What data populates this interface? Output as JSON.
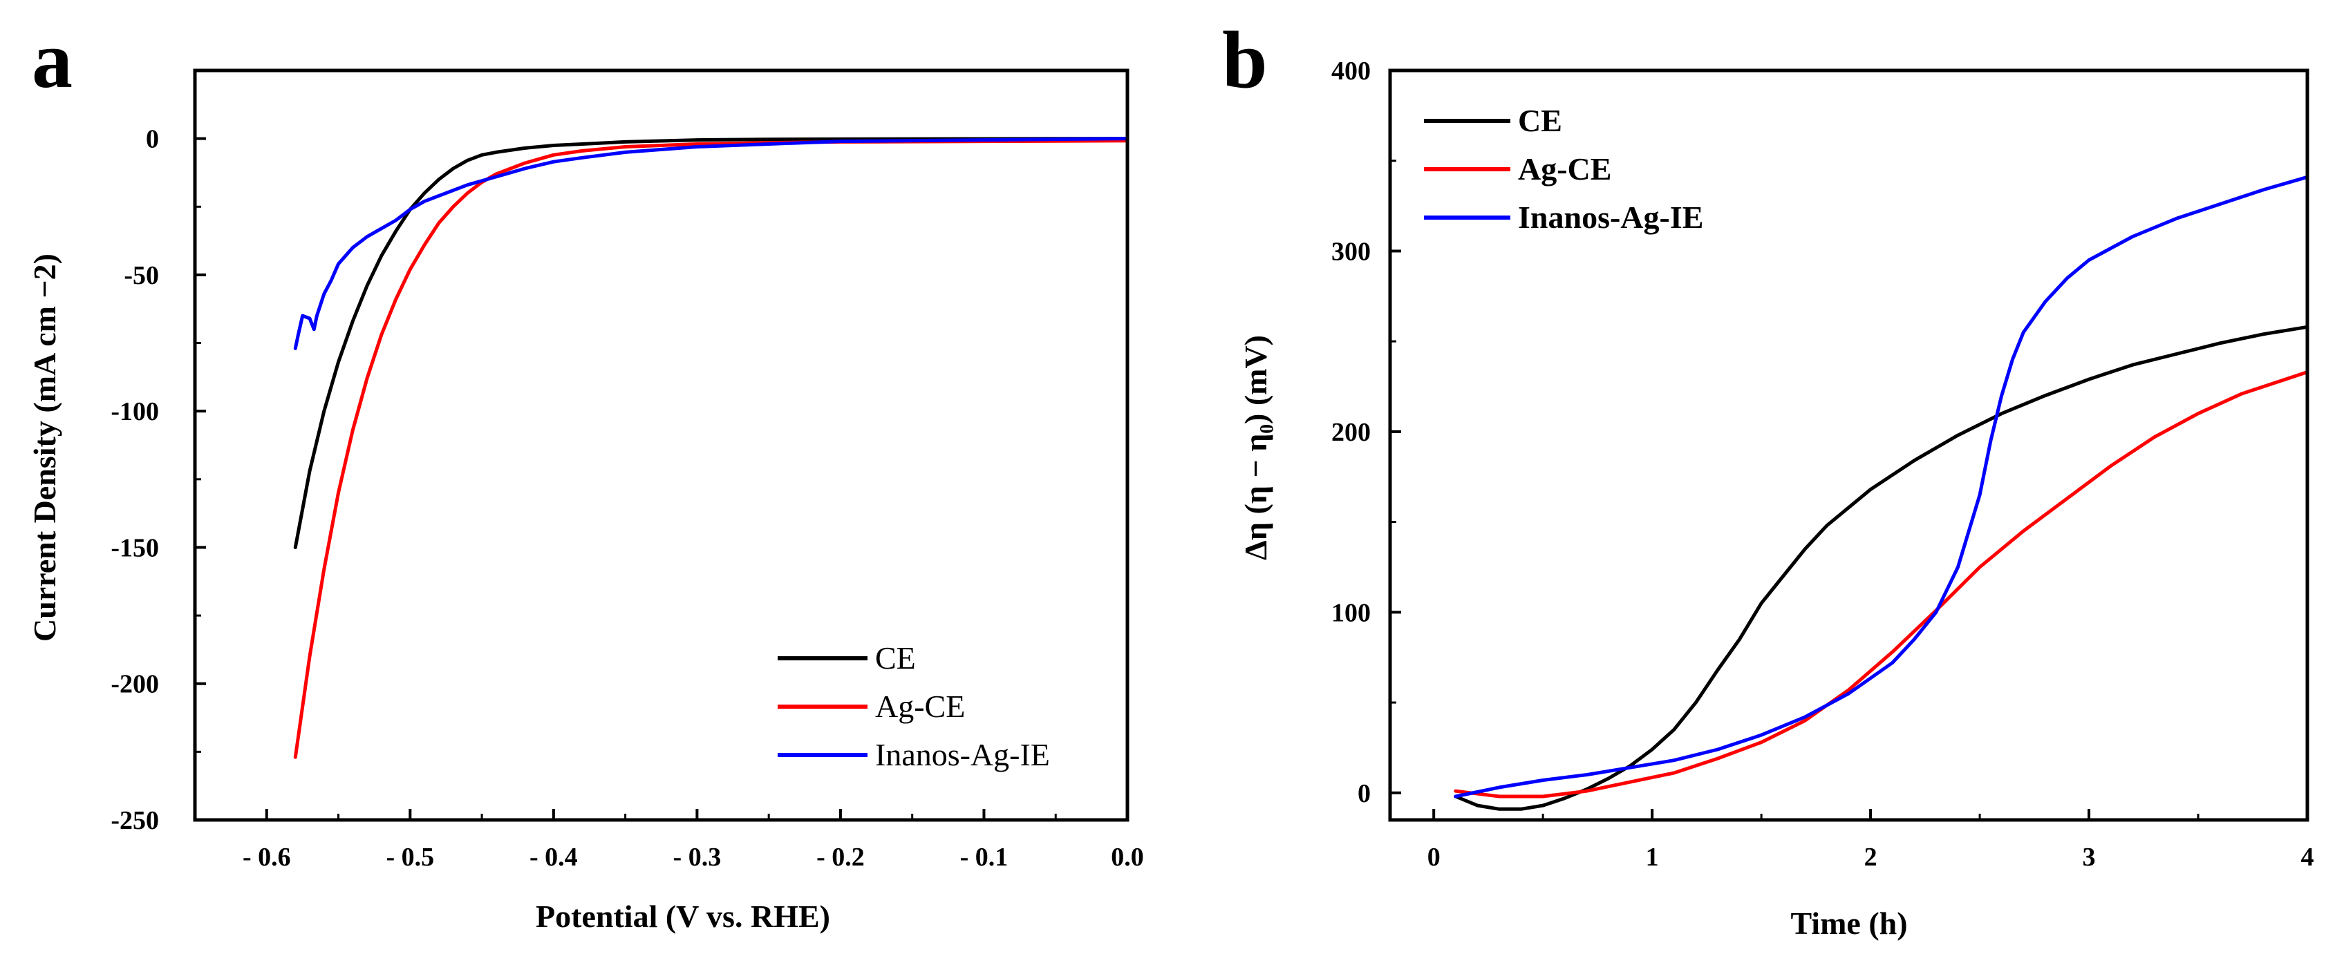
{
  "chart_data": [
    {
      "panel_label": "a",
      "type": "line",
      "title": "",
      "xlabel": "Potential (V vs. RHE)",
      "ylabel": "Current Density (mA cm −2)",
      "xlim": [
        -0.65,
        0.0
      ],
      "ylim": [
        -250,
        25
      ],
      "xticks": [
        -0.6,
        -0.5,
        -0.4,
        -0.3,
        -0.2,
        -0.1,
        0.0
      ],
      "xtick_labels": [
        "- 0.6",
        "- 0.5",
        "- 0.4",
        "- 0.3",
        "- 0.2",
        "- 0.1",
        "0.0"
      ],
      "yticks": [
        0,
        -50,
        -100,
        -150,
        -200,
        -250
      ],
      "ytick_labels": [
        "0",
        "-50",
        "-100",
        "-150",
        "-200",
        "-250"
      ],
      "grid": false,
      "legend_position": "bottom-right",
      "series": [
        {
          "name": "CE",
          "color": "#000000",
          "x": [
            -0.58,
            -0.57,
            -0.56,
            -0.55,
            -0.54,
            -0.53,
            -0.52,
            -0.51,
            -0.5,
            -0.49,
            -0.48,
            -0.47,
            -0.46,
            -0.45,
            -0.44,
            -0.42,
            -0.4,
            -0.38,
            -0.35,
            -0.3,
            -0.25,
            -0.2,
            -0.1,
            0.0
          ],
          "y": [
            -150,
            -122,
            -100,
            -82,
            -67,
            -54,
            -43,
            -34,
            -26,
            -20,
            -15,
            -11,
            -8,
            -6,
            -5,
            -3.5,
            -2.5,
            -2,
            -1.2,
            -0.5,
            -0.3,
            -0.2,
            -0.1,
            0
          ]
        },
        {
          "name": "Ag-CE",
          "color": "#ff0000",
          "x": [
            -0.58,
            -0.57,
            -0.56,
            -0.55,
            -0.54,
            -0.53,
            -0.52,
            -0.51,
            -0.5,
            -0.49,
            -0.48,
            -0.47,
            -0.46,
            -0.45,
            -0.44,
            -0.43,
            -0.42,
            -0.41,
            -0.4,
            -0.38,
            -0.35,
            -0.3,
            -0.25,
            -0.2,
            -0.1,
            0.0
          ],
          "y": [
            -227,
            -190,
            -158,
            -130,
            -107,
            -88,
            -72,
            -59,
            -48,
            -39,
            -31,
            -25,
            -20,
            -16,
            -13,
            -11,
            -9,
            -7.5,
            -6,
            -4.5,
            -3,
            -2,
            -1.5,
            -1.2,
            -1,
            -0.8
          ]
        },
        {
          "name": "Inanos-Ag-IE",
          "color": "#0000ff",
          "x": [
            -0.58,
            -0.578,
            -0.575,
            -0.57,
            -0.567,
            -0.565,
            -0.56,
            -0.555,
            -0.55,
            -0.545,
            -0.54,
            -0.53,
            -0.52,
            -0.51,
            -0.5,
            -0.49,
            -0.48,
            -0.47,
            -0.46,
            -0.44,
            -0.42,
            -0.4,
            -0.38,
            -0.35,
            -0.3,
            -0.25,
            -0.2,
            -0.1,
            0.0
          ],
          "y": [
            -77,
            -72,
            -65,
            -66,
            -70,
            -65,
            -57,
            -52,
            -46,
            -43,
            -40,
            -36,
            -33,
            -30,
            -26,
            -23,
            -21,
            -19,
            -17,
            -14,
            -11,
            -8.5,
            -7,
            -5,
            -3,
            -2,
            -1,
            -0.5,
            0
          ]
        }
      ]
    },
    {
      "panel_label": "b",
      "type": "line",
      "title": "",
      "xlabel": "Time (h)",
      "ylabel": "Δη (η − η₀) (mV)",
      "xlim": [
        -0.2,
        4.0
      ],
      "ylim": [
        -15,
        400
      ],
      "xticks": [
        0,
        1,
        2,
        3,
        4
      ],
      "xtick_labels": [
        "0",
        "1",
        "2",
        "3",
        "4"
      ],
      "yticks": [
        0,
        100,
        200,
        300,
        400
      ],
      "ytick_labels": [
        "0",
        "100",
        "200",
        "300",
        "400"
      ],
      "grid": false,
      "legend_position": "top-left",
      "series": [
        {
          "name": "CE",
          "color": "#000000",
          "x": [
            0.1,
            0.2,
            0.3,
            0.4,
            0.5,
            0.6,
            0.7,
            0.8,
            0.9,
            1.0,
            1.1,
            1.2,
            1.3,
            1.4,
            1.5,
            1.6,
            1.7,
            1.8,
            1.9,
            2.0,
            2.2,
            2.4,
            2.6,
            2.8,
            3.0,
            3.2,
            3.4,
            3.6,
            3.8,
            4.0
          ],
          "y": [
            -2,
            -7,
            -9,
            -9,
            -7,
            -3,
            2,
            8,
            15,
            24,
            35,
            50,
            68,
            85,
            105,
            120,
            135,
            148,
            158,
            168,
            184,
            198,
            210,
            220,
            229,
            237,
            243,
            249,
            254,
            258
          ]
        },
        {
          "name": "Ag-CE",
          "color": "#ff0000",
          "x": [
            0.1,
            0.3,
            0.5,
            0.7,
            0.9,
            1.1,
            1.3,
            1.5,
            1.7,
            1.9,
            2.1,
            2.3,
            2.5,
            2.7,
            2.9,
            3.1,
            3.3,
            3.5,
            3.7,
            3.9,
            4.0
          ],
          "y": [
            1,
            -2,
            -2,
            1,
            6,
            11,
            19,
            28,
            40,
            57,
            78,
            101,
            125,
            145,
            163,
            181,
            197,
            210,
            221,
            229,
            233
          ]
        },
        {
          "name": "Inanos-Ag-IE",
          "color": "#0000ff",
          "x": [
            0.1,
            0.3,
            0.5,
            0.7,
            0.9,
            1.1,
            1.3,
            1.5,
            1.7,
            1.9,
            2.1,
            2.2,
            2.3,
            2.4,
            2.5,
            2.55,
            2.6,
            2.65,
            2.7,
            2.8,
            2.9,
            3.0,
            3.2,
            3.4,
            3.6,
            3.8,
            4.0
          ],
          "y": [
            -2,
            3,
            7,
            10,
            14,
            18,
            24,
            32,
            42,
            55,
            72,
            85,
            100,
            125,
            165,
            195,
            220,
            240,
            255,
            272,
            285,
            295,
            308,
            318,
            326,
            334,
            341
          ]
        }
      ]
    }
  ]
}
